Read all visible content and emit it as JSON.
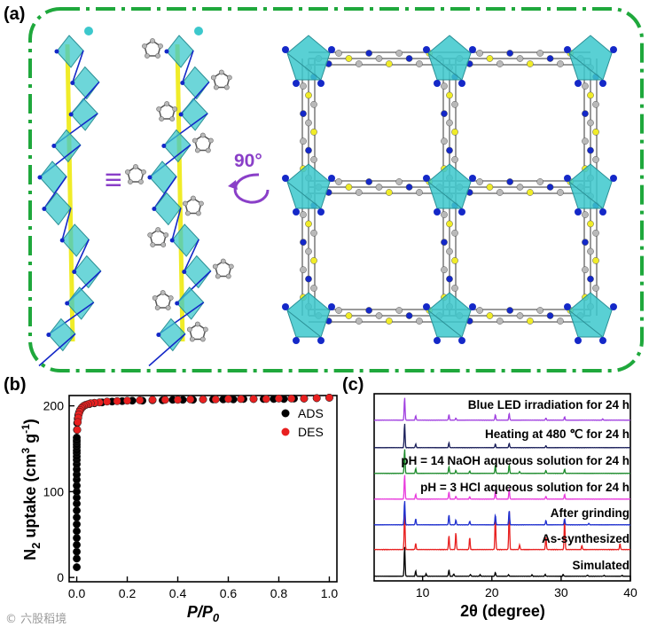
{
  "panels": {
    "a": "(a)",
    "b": "(b)",
    "c": "(c)"
  },
  "panel_a": {
    "rotation_label": "90°",
    "equivalence_symbol": "≡",
    "colors": {
      "frame": "#1fa83c",
      "polyhedra": "#3cc8cc",
      "nitrogen": "#1428c8",
      "carbon": "#b9b9b9",
      "sulfur": "#f0ec28",
      "rotation": "#8a3fc8"
    }
  },
  "watermark": "©   六股稻境",
  "chart_data": [
    {
      "panel": "b",
      "type": "scatter",
      "xlabel_main": "P/P",
      "xlabel_sub": "0",
      "ylabel_parts": [
        "N",
        "2",
        " uptake (cm",
        "3",
        " g",
        "-1",
        ")"
      ],
      "xlim": [
        -0.03,
        1.03
      ],
      "ylim": [
        -5,
        212
      ],
      "xticks": [
        0.0,
        0.2,
        0.4,
        0.6,
        0.8,
        1.0
      ],
      "xtick_labels": [
        "0.0",
        "0.2",
        "0.4",
        "0.6",
        "0.8",
        "1.0"
      ],
      "yticks": [
        0,
        100,
        200
      ],
      "ytick_labels": [
        "0",
        "100",
        "200"
      ],
      "legend_position": "top-right",
      "series": [
        {
          "name": "ADS",
          "color": "#000000",
          "x": [
            0.0,
            0.0,
            0.0,
            0.0,
            0.0,
            0.0,
            0.0,
            0.0,
            0.0,
            0.0,
            0.0,
            0.0,
            0.0,
            0.0,
            0.0,
            0.0,
            0.0,
            0.0,
            0.0,
            0.0,
            0.0,
            0.0,
            0.0,
            0.0,
            0.0,
            0.0,
            0.001,
            0.002,
            0.004,
            0.006,
            0.009,
            0.013,
            0.018,
            0.025,
            0.035,
            0.05,
            0.07,
            0.1,
            0.14,
            0.18,
            0.22,
            0.26,
            0.3,
            0.34,
            0.38,
            0.42,
            0.46,
            0.5,
            0.54,
            0.58,
            0.62,
            0.66,
            0.7,
            0.74,
            0.78,
            0.82,
            0.86,
            0.9,
            0.95,
            1.0
          ],
          "y": [
            12,
            22,
            30,
            38,
            46,
            54,
            62,
            70,
            78,
            86,
            93,
            100,
            107,
            114,
            120,
            126,
            132,
            137,
            141,
            145,
            148,
            152,
            155,
            158,
            160,
            163,
            172,
            180,
            185,
            189,
            192,
            195,
            197,
            199,
            201,
            202,
            203,
            204,
            205,
            205.5,
            206,
            206,
            206.5,
            206.5,
            207,
            207,
            207,
            207.5,
            207.5,
            207.5,
            207.5,
            208,
            208,
            208,
            208,
            208,
            208.5,
            208.5,
            209,
            209.5
          ]
        },
        {
          "name": "DES",
          "color": "#e82020",
          "x": [
            1.0,
            0.95,
            0.9,
            0.85,
            0.8,
            0.75,
            0.7,
            0.65,
            0.6,
            0.55,
            0.5,
            0.45,
            0.4,
            0.35,
            0.3,
            0.25,
            0.2,
            0.16,
            0.12,
            0.09,
            0.07,
            0.055,
            0.045,
            0.035,
            0.028,
            0.022,
            0.018,
            0.014,
            0.011,
            0.008,
            0.006,
            0.004,
            0.002
          ],
          "y": [
            209.5,
            209,
            208.5,
            208.5,
            208.5,
            208,
            208,
            208,
            208,
            207.5,
            207.5,
            207.5,
            207,
            207,
            207,
            206.5,
            206,
            205.5,
            205,
            204,
            203.5,
            203,
            202,
            201,
            200,
            198.5,
            197,
            195,
            193,
            190,
            186,
            181,
            172
          ]
        }
      ]
    },
    {
      "panel": "c",
      "type": "line",
      "xlabel": "2θ (degree)",
      "xlim": [
        3,
        40
      ],
      "xticks": [
        10,
        20,
        30,
        40
      ],
      "xtick_labels": [
        "10",
        "20",
        "30",
        "40"
      ],
      "y_ticks_shown": false,
      "series": [
        {
          "name": "Simulated",
          "color": "#000000",
          "peaks": [
            [
              7.4,
              1.0
            ],
            [
              9.0,
              0.18
            ],
            [
              10.5,
              0.08
            ],
            [
              13.8,
              0.22
            ],
            [
              14.5,
              0.08
            ],
            [
              16.9,
              0.06
            ],
            [
              18.3,
              0.05
            ],
            [
              20.5,
              0.13
            ],
            [
              22.4,
              0.05
            ],
            [
              25.8,
              0.05
            ],
            [
              27.7,
              0.06
            ],
            [
              30.3,
              0.06
            ],
            [
              33.8,
              0.04
            ],
            [
              36.2,
              0.03
            ],
            [
              38.8,
              0.03
            ]
          ]
        },
        {
          "name": "As-synthesized",
          "color": "#e82020",
          "peaks": [
            [
              7.4,
              0.95
            ],
            [
              9.0,
              0.15
            ],
            [
              13.8,
              0.35
            ],
            [
              14.8,
              0.42
            ],
            [
              16.8,
              0.3
            ],
            [
              20.5,
              0.85
            ],
            [
              22.5,
              1.0
            ],
            [
              24.0,
              0.12
            ],
            [
              27.8,
              0.32
            ],
            [
              30.5,
              0.75
            ],
            [
              33.0,
              0.1
            ],
            [
              38.5,
              0.15
            ]
          ]
        },
        {
          "name": "After grinding",
          "color": "#1e2fcf",
          "peaks": [
            [
              7.4,
              1.0
            ],
            [
              9.0,
              0.25
            ],
            [
              13.8,
              0.4
            ],
            [
              14.8,
              0.2
            ],
            [
              16.8,
              0.15
            ],
            [
              20.5,
              0.4
            ],
            [
              22.5,
              0.6
            ],
            [
              27.8,
              0.18
            ],
            [
              30.5,
              0.25
            ],
            [
              34.0,
              0.06
            ]
          ]
        },
        {
          "name": "pH = 3 HCl aqueous solution for 24 h",
          "color": "#e83adc",
          "peaks": [
            [
              7.4,
              1.0
            ],
            [
              9.0,
              0.2
            ],
            [
              13.8,
              0.3
            ],
            [
              14.8,
              0.12
            ],
            [
              16.8,
              0.1
            ],
            [
              20.5,
              0.3
            ],
            [
              22.5,
              0.4
            ],
            [
              27.8,
              0.12
            ],
            [
              30.5,
              0.2
            ]
          ]
        },
        {
          "name": "pH = 14 NaOH aqueous solution for 24 h",
          "color": "#1b8a2a",
          "peaks": [
            [
              7.4,
              1.0
            ],
            [
              9.0,
              0.2
            ],
            [
              13.8,
              0.28
            ],
            [
              14.8,
              0.12
            ],
            [
              16.8,
              0.1
            ],
            [
              20.5,
              0.3
            ],
            [
              22.5,
              0.35
            ],
            [
              24.0,
              0.08
            ],
            [
              27.8,
              0.12
            ],
            [
              30.5,
              0.18
            ]
          ]
        },
        {
          "name": "Heating at 480 ℃ for 24 h",
          "color": "#1a1f5a",
          "peaks": [
            [
              7.4,
              1.0
            ],
            [
              9.0,
              0.15
            ],
            [
              13.8,
              0.2
            ],
            [
              20.5,
              0.15
            ],
            [
              22.5,
              0.18
            ],
            [
              27.8,
              0.08
            ]
          ]
        },
        {
          "name": "Blue LED irradiation for 24 h",
          "color": "#a040e0",
          "peaks": [
            [
              7.4,
              1.0
            ],
            [
              9.0,
              0.2
            ],
            [
              13.8,
              0.25
            ],
            [
              14.8,
              0.1
            ],
            [
              20.5,
              0.25
            ],
            [
              22.5,
              0.3
            ],
            [
              27.8,
              0.1
            ],
            [
              30.5,
              0.15
            ],
            [
              36.0,
              0.06
            ]
          ]
        }
      ]
    }
  ]
}
